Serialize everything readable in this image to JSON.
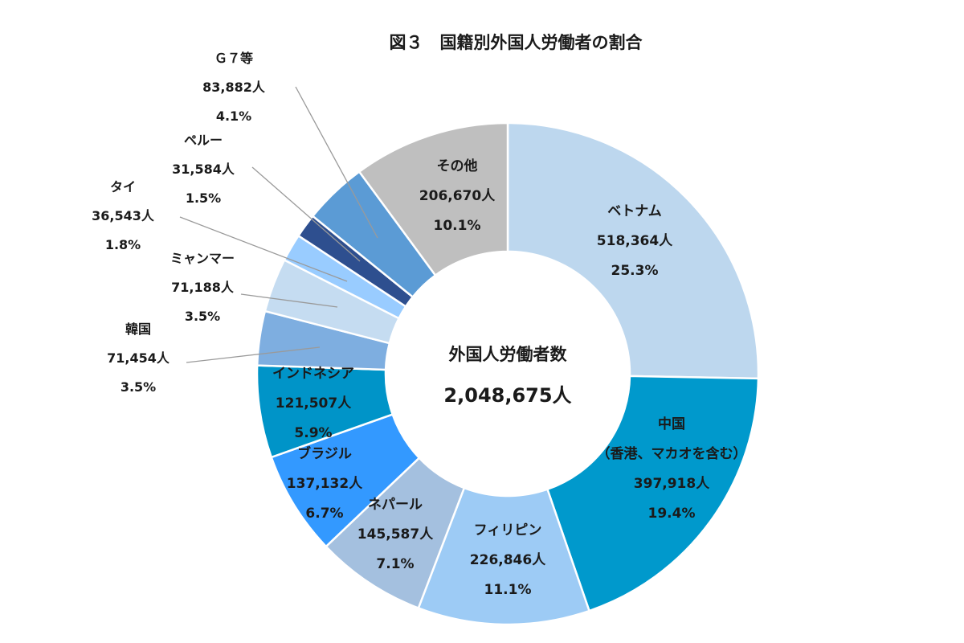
{
  "chart_data": {
    "type": "pie",
    "donut": true,
    "title": "図３　国籍別外国人労働者の割合",
    "center_label": "外国人労働者数",
    "center_value": "2,048,675人",
    "slices": [
      {
        "name": "ベトナム",
        "name2": "",
        "value": 518364,
        "value_label": "518,364人",
        "percent": "25.3%",
        "color": "#bdd7ee"
      },
      {
        "name": "中国",
        "name2": "（香港、マカオを含む）",
        "value": 397918,
        "value_label": "397,918人",
        "percent": "19.4%",
        "color": "#0099cc"
      },
      {
        "name": "フィリピン",
        "name2": "",
        "value": 226846,
        "value_label": "226,846人",
        "percent": "11.1%",
        "color": "#9dcbf5"
      },
      {
        "name": "ネパール",
        "name2": "",
        "value": 145587,
        "value_label": "145,587人",
        "percent": "7.1%",
        "color": "#a4c0df"
      },
      {
        "name": "ブラジル",
        "name2": "",
        "value": 137132,
        "value_label": "137,132人",
        "percent": "6.7%",
        "color": "#3399ff"
      },
      {
        "name": "インドネシア",
        "name2": "",
        "value": 121507,
        "value_label": "121,507人",
        "percent": "5.9%",
        "color": "#0094c8"
      },
      {
        "name": "韓国",
        "name2": "",
        "value": 71454,
        "value_label": "71,454人",
        "percent": "3.5%",
        "color": "#7eaee0"
      },
      {
        "name": "ミャンマー",
        "name2": "",
        "value": 71188,
        "value_label": "71,188人",
        "percent": "3.5%",
        "color": "#c5dcf1"
      },
      {
        "name": "タイ",
        "name2": "",
        "value": 36543,
        "value_label": "36,543人",
        "percent": "1.8%",
        "color": "#99ccff"
      },
      {
        "name": "ペルー",
        "name2": "",
        "value": 31584,
        "value_label": "31,584人",
        "percent": "1.5%",
        "color": "#2e4f8f"
      },
      {
        "name": "Ｇ７等",
        "name2": "",
        "value": 83882,
        "value_label": "83,882人",
        "percent": "4.1%",
        "color": "#5b9bd5"
      },
      {
        "name": "その他",
        "name2": "",
        "value": 206670,
        "value_label": "206,670人",
        "percent": "10.1%",
        "color": "#bfbfbf"
      }
    ],
    "legend": "none"
  }
}
